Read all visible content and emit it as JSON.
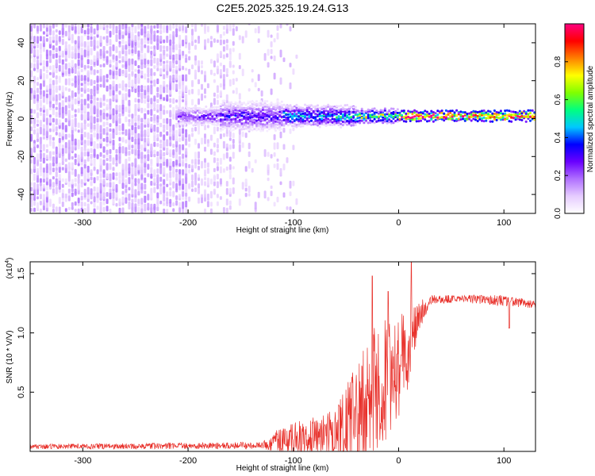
{
  "title": "C2E5.2025.325.19.24.G13",
  "chart_data": [
    {
      "type": "heatmap",
      "name": "spectrogram",
      "xlabel": "Height of straight line (km)",
      "ylabel": "Frequency (Hz)",
      "xlim": [
        -350,
        130
      ],
      "ylim": [
        -50,
        50
      ],
      "xticks": [
        -300,
        -200,
        -100,
        0,
        100
      ],
      "xtick_labels": [
        "-300",
        "-200",
        "-100",
        "0",
        "100"
      ],
      "yticks": [
        -40,
        -20,
        0,
        20,
        40
      ],
      "ytick_labels": [
        "-40",
        "-20",
        "0",
        "20",
        "40"
      ],
      "colorbar": {
        "label": "Normalized spectral amplitude",
        "range": [
          0,
          1
        ],
        "ticks": [
          0.0,
          0.2,
          0.4,
          0.6,
          0.8
        ],
        "tick_labels": [
          "0.0",
          "0.2",
          "0.4",
          "0.6",
          "0.8"
        ],
        "colors": [
          "#ffffff",
          "#e6ccff",
          "#b070ff",
          "#6a00ff",
          "#0000ff",
          "#00c8ff",
          "#00ff80",
          "#80ff00",
          "#ffff00",
          "#ff8000",
          "#ff0000",
          "#ff0080"
        ]
      },
      "noise_region_km": [
        -350,
        -115
      ],
      "signal_band": {
        "center_hz": 1,
        "segments": [
          {
            "x": [
              -210,
              -170
            ],
            "halfwidth_hz": 4,
            "peak": 0.25
          },
          {
            "x": [
              -170,
              -110
            ],
            "halfwidth_hz": 7,
            "peak": 0.3
          },
          {
            "x": [
              -110,
              -40
            ],
            "halfwidth_hz": 5,
            "peak": 0.45
          },
          {
            "x": [
              -40,
              0
            ],
            "halfwidth_hz": 3,
            "peak": 0.6
          },
          {
            "x": [
              0,
              130
            ],
            "halfwidth_hz": 2,
            "peak": 0.95
          }
        ]
      }
    },
    {
      "type": "line",
      "name": "snr",
      "xlabel": "Height of straight line (km)",
      "ylabel": "SNR (10 * V/V)",
      "scale_label": "(x10",
      "scale_exp": "4",
      "scale_close": ")",
      "xlim": [
        -350,
        130
      ],
      "ylim": [
        0,
        1.6
      ],
      "xticks": [
        -300,
        -200,
        -100,
        0,
        100
      ],
      "xtick_labels": [
        "-300",
        "-200",
        "-100",
        "0",
        "100"
      ],
      "yticks": [
        0.5,
        1.0,
        1.5
      ],
      "ytick_labels": [
        "0.5",
        "1.0",
        "1.5"
      ],
      "color": "#e8302a",
      "envelope": [
        {
          "x": -350,
          "y": 0.04,
          "noise": 0.02
        },
        {
          "x": -130,
          "y": 0.05,
          "noise": 0.03
        },
        {
          "x": -110,
          "y": 0.1,
          "noise": 0.12
        },
        {
          "x": -60,
          "y": 0.15,
          "noise": 0.2
        },
        {
          "x": -40,
          "y": 0.3,
          "noise": 0.45
        },
        {
          "x": -20,
          "y": 0.55,
          "noise": 0.55
        },
        {
          "x": 0,
          "y": 0.7,
          "noise": 0.45
        },
        {
          "x": 10,
          "y": 0.9,
          "noise": 0.35
        },
        {
          "x": 20,
          "y": 1.15,
          "noise": 0.12
        },
        {
          "x": 30,
          "y": 1.28,
          "noise": 0.04
        },
        {
          "x": 60,
          "y": 1.29,
          "noise": 0.03
        },
        {
          "x": 100,
          "y": 1.27,
          "noise": 0.05
        },
        {
          "x": 130,
          "y": 1.24,
          "noise": 0.03
        }
      ],
      "spikes": [
        {
          "x": -25,
          "y": 1.48
        },
        {
          "x": -10,
          "y": 1.35
        },
        {
          "x": 12,
          "y": 1.6
        },
        {
          "x": 105,
          "y": 1.04
        }
      ]
    }
  ]
}
